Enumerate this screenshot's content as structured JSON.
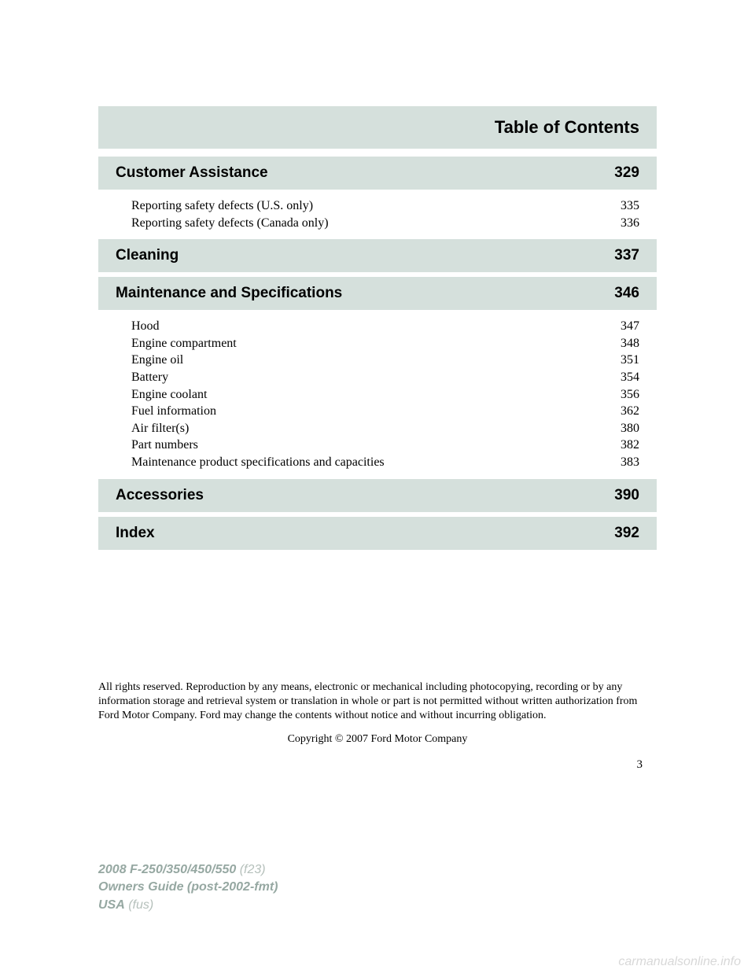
{
  "header": {
    "title": "Table of Contents"
  },
  "sections": [
    {
      "title": "Customer Assistance",
      "page": "329",
      "items": [
        {
          "label": "Reporting safety defects (U.S. only)",
          "page": "335"
        },
        {
          "label": "Reporting safety defects (Canada only)",
          "page": "336"
        }
      ]
    },
    {
      "title": "Cleaning",
      "page": "337",
      "items": []
    },
    {
      "title": "Maintenance and Specifications",
      "page": "346",
      "items": [
        {
          "label": "Hood",
          "page": "347"
        },
        {
          "label": "Engine compartment",
          "page": "348"
        },
        {
          "label": "Engine oil",
          "page": "351"
        },
        {
          "label": "Battery",
          "page": "354"
        },
        {
          "label": "Engine coolant",
          "page": "356"
        },
        {
          "label": "Fuel information",
          "page": "362"
        },
        {
          "label": "Air filter(s)",
          "page": "380"
        },
        {
          "label": "Part numbers",
          "page": "382"
        },
        {
          "label": "Maintenance product specifications and capacities",
          "page": "383"
        }
      ]
    },
    {
      "title": "Accessories",
      "page": "390",
      "items": []
    },
    {
      "title": "Index",
      "page": "392",
      "items": []
    }
  ],
  "legal": "All rights reserved. Reproduction by any means, electronic or mechanical including photocopying, recording or by any information storage and retrieval system or translation in whole or part is not permitted without written authorization from Ford Motor Company. Ford may change the contents without notice and without incurring obligation.",
  "copyright": "Copyright © 2007 Ford Motor Company",
  "page_number": "3",
  "footer": {
    "line1_bold": "2008 F-250/350/450/550",
    "line1_italic": " (f23)",
    "line2_bold": "Owners Guide (post-2002-fmt)",
    "line3_bold": "USA",
    "line3_italic": " (fus)"
  },
  "watermark": "carmanualsonline.info",
  "colors": {
    "section_bg": "#d5e0dc",
    "text": "#000000",
    "footer_bold": "#96a8a2",
    "footer_italic": "#b5c0bb",
    "watermark": "#d8d8d8"
  }
}
